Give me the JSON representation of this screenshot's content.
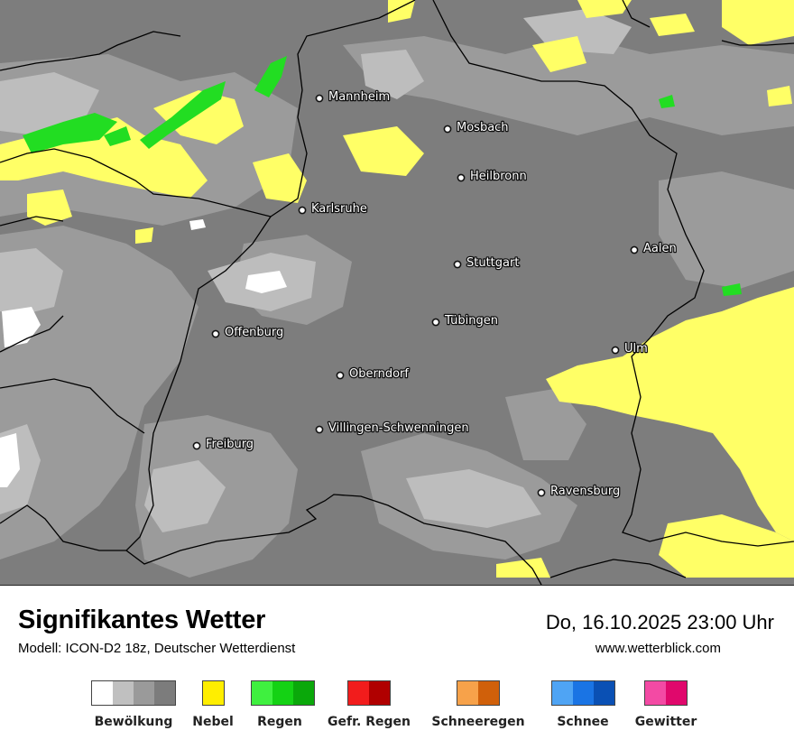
{
  "title": "Signifikantes Wetter",
  "subtitle": "Modell: ICON-D2 18z, Deutscher Wetterdienst",
  "datetime": "Do, 16.10.2025 23:00 Uhr",
  "website": "www.wetterblick.com",
  "cities": [
    {
      "name": "Mannheim"
    },
    {
      "name": "Mosbach"
    },
    {
      "name": "Heilbronn"
    },
    {
      "name": "Karlsruhe"
    },
    {
      "name": "Aalen"
    },
    {
      "name": "Stuttgart"
    },
    {
      "name": "Tübingen"
    },
    {
      "name": "Offenburg"
    },
    {
      "name": "Ulm"
    },
    {
      "name": "Oberndorf"
    },
    {
      "name": "Villingen-Schwenningen"
    },
    {
      "name": "Freiburg"
    },
    {
      "name": "Ravensburg"
    }
  ],
  "legend": [
    {
      "label": "Bewölkung",
      "colors": [
        "#ffffff",
        "#c0c0c0",
        "#9a9a9a",
        "#7c7c7c"
      ]
    },
    {
      "label": "Nebel",
      "colors": [
        "#ffee00"
      ]
    },
    {
      "label": "Regen",
      "colors": [
        "#3ff03f",
        "#14d214",
        "#0aa80a"
      ]
    },
    {
      "label": "Gefr. Regen",
      "colors": [
        "#f21c1c",
        "#b00000"
      ]
    },
    {
      "label": "Schneeregen",
      "colors": [
        "#f7a24a",
        "#d0600a"
      ]
    },
    {
      "label": "Schnee",
      "colors": [
        "#4fa4f4",
        "#1a74e4",
        "#0a50b4"
      ]
    },
    {
      "label": "Gewitter",
      "colors": [
        "#f34aa4",
        "#e0086c"
      ]
    }
  ],
  "colors": {
    "cloud_dark": "#7d7d7d",
    "cloud_mid": "#999999",
    "cloud_light": "#bcbcbc",
    "fog": "#ffff66",
    "rain": "#22dd22"
  }
}
